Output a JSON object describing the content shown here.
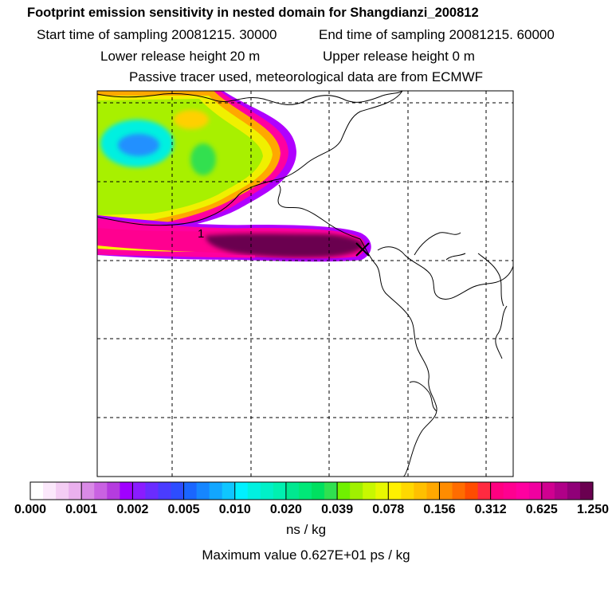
{
  "header": {
    "title": "Footprint emission sensitivity in nested domain for Shangdianzi_200812",
    "start_label": "Start time of sampling 20081215. 30000",
    "end_label": "End time of sampling 20081215. 60000",
    "lower_label": "Lower release height   20 m",
    "upper_label": "Upper release height    0 m",
    "tracer_note": "Passive tracer used, meteorological data are from ECMWF"
  },
  "map": {
    "contour_label": "1",
    "receptor_marker": "x-marker"
  },
  "colorbar": {
    "tick_labels": [
      "0.000",
      "0.001",
      "0.002",
      "0.005",
      "0.010",
      "0.020",
      "0.039",
      "0.078",
      "0.156",
      "0.312",
      "0.625",
      "1.250"
    ],
    "colors": [
      "#ffffff",
      "#fbe8fb",
      "#f4cdf4",
      "#eab0ee",
      "#d98ae6",
      "#c962e2",
      "#b53cdf",
      "#a000ff",
      "#8a1cff",
      "#6a2cff",
      "#4a3cff",
      "#2d4dff",
      "#1a66ff",
      "#1686ff",
      "#12a6ff",
      "#0fc6ff",
      "#00f0ff",
      "#00f0e0",
      "#00f0c8",
      "#00f0b0",
      "#00e890",
      "#00e878",
      "#00e060",
      "#30e050",
      "#70f000",
      "#a0f000",
      "#c8f800",
      "#e8f800",
      "#fff000",
      "#ffd800",
      "#ffc000",
      "#ffa800",
      "#ff8c00",
      "#ff6c00",
      "#ff4c00",
      "#ff2a40",
      "#ff0080",
      "#ff0090",
      "#ff00a0",
      "#f000a0",
      "#d00090",
      "#b00088",
      "#900078",
      "#6a0050"
    ],
    "unit": "ns / kg"
  },
  "footer": {
    "max_value": "Maximum value  0.627E+01 ps / kg"
  }
}
